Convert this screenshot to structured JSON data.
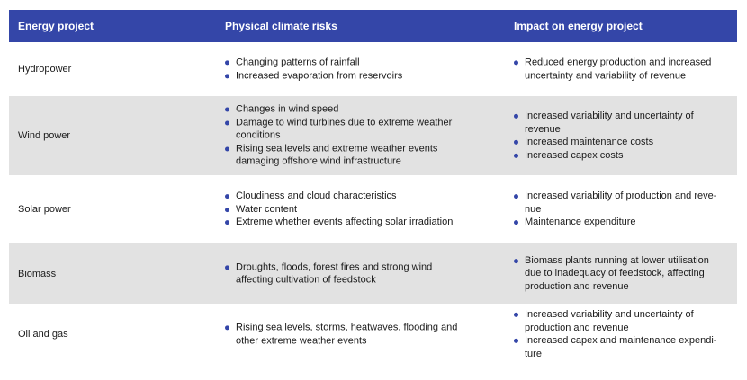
{
  "header": {
    "col1": "Energy project",
    "col2": "Physical climate risks",
    "col3": "Impact on energy project"
  },
  "rows": [
    {
      "project": "Hydropower",
      "risks": [
        "Changing patterns of rainfall",
        "Increased evaporation from reservoirs"
      ],
      "impacts": [
        "Reduced energy production and increased uncertainty and variability of revenue"
      ]
    },
    {
      "project": "Wind power",
      "risks": [
        "Changes in wind speed",
        "Damage to wind turbines due to extreme weather conditions",
        "Rising sea levels and extreme weather events damaging offshore wind infrastructure"
      ],
      "impacts": [
        "Increased variability and uncertainty of revenue",
        "Increased maintenance costs",
        "Increased capex costs"
      ]
    },
    {
      "project": "Solar power",
      "risks": [
        "Cloudiness and cloud characteristics",
        "Water content",
        "Extreme whether events affecting solar irradiation"
      ],
      "impacts": [
        "Increased variability of production and reve-nue",
        "Maintenance expenditure"
      ]
    },
    {
      "project": "Biomass",
      "risks": [
        "Droughts, floods, forest fires and strong wind affecting cultivation of feedstock"
      ],
      "impacts": [
        "Biomass plants running at lower utilisation due to inadequacy of feedstock, affecting production and revenue"
      ]
    },
    {
      "project": "Oil and gas",
      "risks": [
        "Rising sea levels, storms, heatwaves, flooding and other extreme weather events"
      ],
      "impacts": [
        "Increased variability and uncertainty of production and revenue",
        "Increased capex and maintenance expendi-ture"
      ]
    }
  ]
}
